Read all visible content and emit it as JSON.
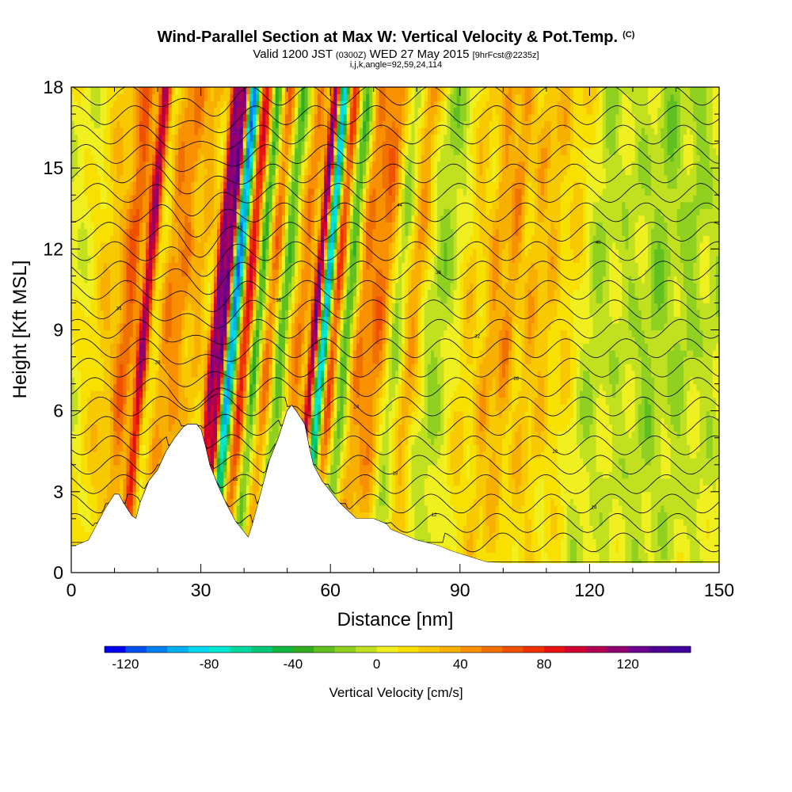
{
  "title": {
    "main": "Wind-Parallel Section at Max W: Vertical Velocity & Pot.Temp.",
    "main_suffix": "(C)",
    "valid_prefix": "Valid 1200 JST",
    "valid_z": "(0300Z)",
    "valid_date": "WED 27 May 2015",
    "valid_fcst": "[9hrFcst@2235z]",
    "indices": "i,j,k,angle=92,59,24,114"
  },
  "chart_data": {
    "type": "heatmap",
    "xlabel": "Distance [nm]",
    "ylabel": "Height [Kft MSL]",
    "xlim": [
      0,
      150
    ],
    "ylim": [
      0,
      18
    ],
    "x_ticks": [
      "0",
      "30",
      "60",
      "90",
      "120",
      "150"
    ],
    "y_ticks": [
      "0",
      "3",
      "6",
      "9",
      "12",
      "15",
      "18"
    ],
    "colorbar": {
      "label": "Vertical Velocity [cm/s]",
      "ticks": [
        "-120",
        "-80",
        "-40",
        "0",
        "40",
        "80",
        "120"
      ],
      "range": [
        -130,
        150
      ],
      "step": 10,
      "colors": [
        "#0000f0",
        "#0050f0",
        "#0080f0",
        "#00b0f0",
        "#00d8f0",
        "#00e8d0",
        "#00d8a0",
        "#00c878",
        "#10b840",
        "#30b020",
        "#60c020",
        "#90d020",
        "#c0e020",
        "#f0f020",
        "#f8e000",
        "#f8c800",
        "#f8b000",
        "#f89000",
        "#f07000",
        "#f05000",
        "#f03000",
        "#e81010",
        "#d00030",
        "#b00050",
        "#900070",
        "#700090",
        "#500090",
        "#4000a0"
      ]
    },
    "w_field": {
      "background": 5,
      "plumes": [
        {
          "x": 3,
          "w": 3.5,
          "amp": 22
        },
        {
          "x": 8,
          "w": 2.2,
          "amp": 55
        },
        {
          "x": 12,
          "w": 1.3,
          "amp": 105
        },
        {
          "x": 17,
          "w": 1.8,
          "amp": 38
        },
        {
          "x": 20,
          "w": 1.8,
          "amp": 40
        },
        {
          "x": 24,
          "w": 2.2,
          "amp": 28
        },
        {
          "x": 28.5,
          "w": 1.2,
          "amp": 115
        },
        {
          "x": 30.5,
          "w": 1.0,
          "amp": 130
        },
        {
          "x": 32.5,
          "w": 1.4,
          "amp": -115
        },
        {
          "x": 35.5,
          "w": 1.6,
          "amp": 85
        },
        {
          "x": 38,
          "w": 1.4,
          "amp": -45
        },
        {
          "x": 41,
          "w": 1.6,
          "amp": 48
        },
        {
          "x": 44,
          "w": 1.5,
          "amp": -35
        },
        {
          "x": 48,
          "w": 2.0,
          "amp": 45
        },
        {
          "x": 51.5,
          "w": 1.0,
          "amp": 120
        },
        {
          "x": 53.5,
          "w": 1.1,
          "amp": -100
        },
        {
          "x": 56,
          "w": 1.3,
          "amp": 65
        },
        {
          "x": 59,
          "w": 1.5,
          "amp": -35
        },
        {
          "x": 62,
          "w": 1.8,
          "amp": 38
        },
        {
          "x": 66,
          "w": 2.8,
          "amp": 50
        },
        {
          "x": 70,
          "w": 1.8,
          "amp": -22
        },
        {
          "x": 74,
          "w": 2.0,
          "amp": 35
        },
        {
          "x": 80,
          "w": 2.5,
          "amp": -18
        },
        {
          "x": 87,
          "w": 2.0,
          "amp": 20
        },
        {
          "x": 92,
          "w": 2.0,
          "amp": 35
        },
        {
          "x": 96,
          "w": 2.0,
          "amp": 40
        },
        {
          "x": 101,
          "w": 2.0,
          "amp": 30
        },
        {
          "x": 105,
          "w": 2.0,
          "amp": 25
        },
        {
          "x": 110,
          "w": 2.5,
          "amp": 15
        },
        {
          "x": 116,
          "w": 2.5,
          "amp": -15
        },
        {
          "x": 123,
          "w": 3.0,
          "amp": -12
        },
        {
          "x": 130,
          "w": 3.0,
          "amp": -22
        },
        {
          "x": 137,
          "w": 3.0,
          "amp": -18
        },
        {
          "x": 144,
          "w": 3.0,
          "amp": -12
        }
      ]
    },
    "terrain": {
      "x": [
        0,
        1,
        4,
        6,
        8,
        10,
        11,
        12,
        14,
        15,
        16,
        18,
        20,
        22,
        24,
        26,
        27,
        28,
        29,
        30,
        31,
        32,
        34,
        36,
        38,
        40,
        41,
        42,
        44,
        46,
        48,
        50,
        51,
        52,
        54,
        55,
        56,
        58,
        60,
        62,
        64,
        66,
        70,
        73,
        74,
        77,
        80,
        85,
        88,
        92,
        96,
        100,
        150
      ],
      "y": [
        1.0,
        1.0,
        1.2,
        1.8,
        2.4,
        2.9,
        2.9,
        2.6,
        2.1,
        2.0,
        2.6,
        3.4,
        3.8,
        4.5,
        5.0,
        5.4,
        5.5,
        5.5,
        5.5,
        5.3,
        4.7,
        4.0,
        3.2,
        2.5,
        1.9,
        1.5,
        1.3,
        1.8,
        3.0,
        4.2,
        5.0,
        6.0,
        6.2,
        6.0,
        5.5,
        4.7,
        4.0,
        3.4,
        3.0,
        2.6,
        2.3,
        2.0,
        2.0,
        1.8,
        1.6,
        1.4,
        1.2,
        1.0,
        0.8,
        0.6,
        0.4,
        0.35,
        0.35
      ]
    },
    "theta_contours": {
      "levels": [
        8,
        10,
        12,
        14,
        16,
        18,
        20,
        22,
        24,
        26,
        28,
        30,
        32,
        34,
        36,
        38,
        40,
        42,
        44,
        46,
        48,
        50,
        52,
        54,
        56
      ],
      "base_height_kft": 0.4,
      "spacing_kft": 0.72,
      "line_color": "#000000",
      "labels_shown": [
        "6",
        "12",
        "14",
        "16",
        "18",
        "20",
        "22",
        "24",
        "26",
        "28",
        "30",
        "32",
        "34",
        "36",
        "38",
        "40",
        "42",
        "44"
      ]
    }
  }
}
